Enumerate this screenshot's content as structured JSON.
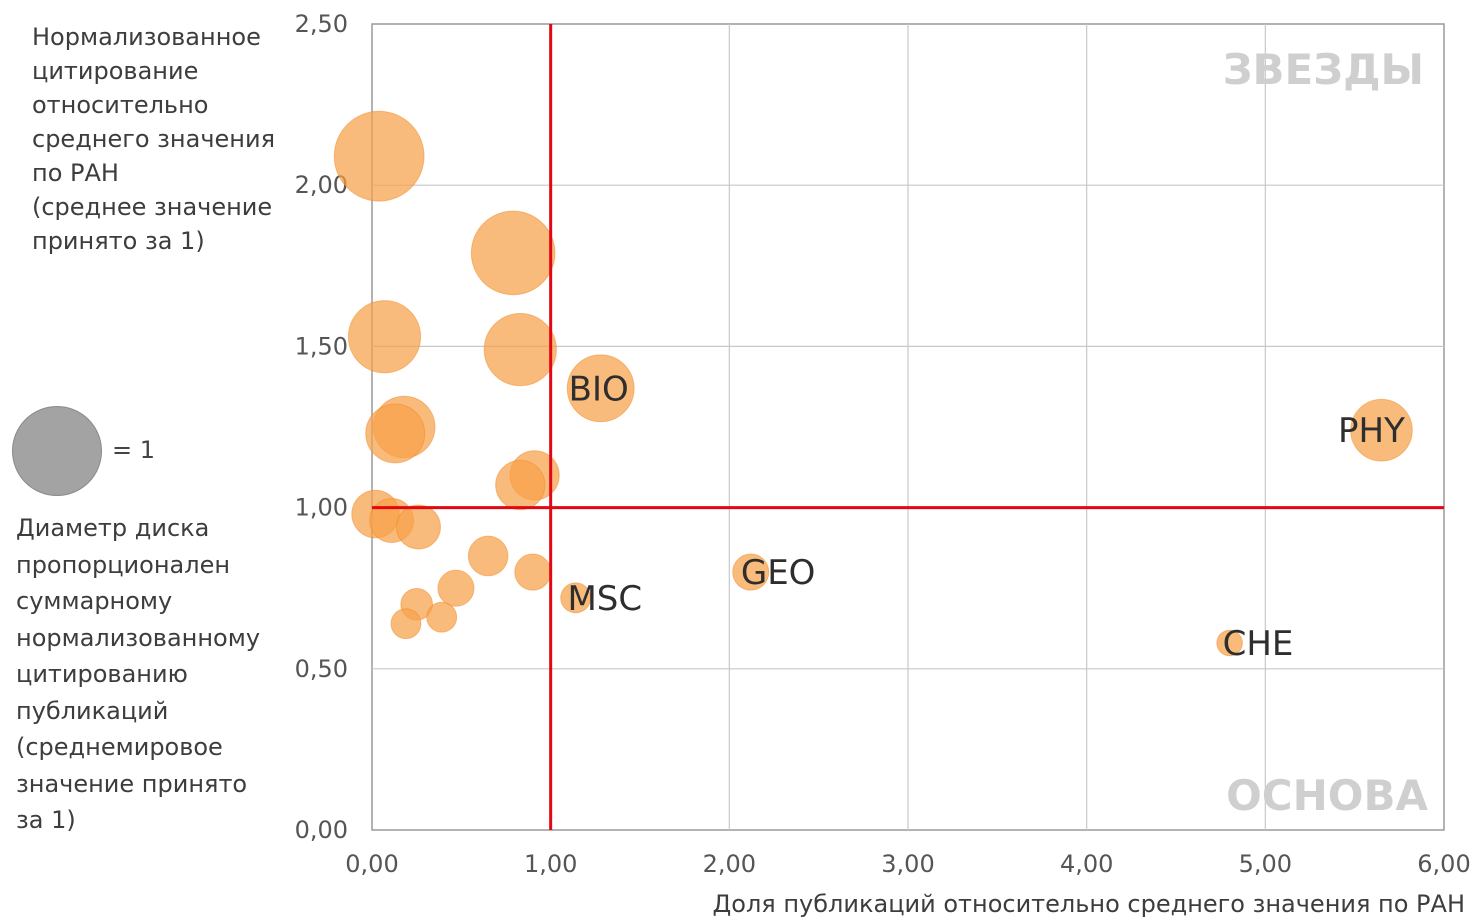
{
  "chart_data": {
    "type": "scatter",
    "variant": "bubble",
    "title": "",
    "ylabel": "Нормализованное\nцитирование\nотносительно\nсреднего значения\nпо РАН\n(среднее значение\nпринято за 1)",
    "xlabel": "Доля публикаций относительно среднего значения по РАН",
    "xlim": [
      0,
      6
    ],
    "ylim": [
      0,
      2.5
    ],
    "x_ticks": [
      "0,00",
      "1,00",
      "2,00",
      "3,00",
      "4,00",
      "5,00",
      "6,00"
    ],
    "y_ticks": [
      "0,00",
      "0,50",
      "1,00",
      "1,50",
      "2,00",
      "2,50"
    ],
    "grid": true,
    "reference_lines": {
      "x": 1.0,
      "y": 1.0,
      "color": "#e30613"
    },
    "quadrant_labels": {
      "top_right": "ЗВЕЗДЫ",
      "bottom_right": "ОСНОВА"
    },
    "size_legend": {
      "label": "= 1",
      "value": 1,
      "description": "Диаметр диска\nпропорционален\nсуммарному\nнормализованному\nцитированию\nпубликаций\n(среднемировое\nзначение принято\nза 1)"
    },
    "bubble_color": "#f7a148",
    "points": [
      {
        "x": 0.04,
        "y": 2.09,
        "size": 1.02
      },
      {
        "x": 0.79,
        "y": 1.79,
        "size": 0.95
      },
      {
        "x": 0.07,
        "y": 1.53,
        "size": 0.82
      },
      {
        "x": 0.83,
        "y": 1.49,
        "size": 0.82
      },
      {
        "x": 1.28,
        "y": 1.37,
        "size": 0.76,
        "label": "BIO"
      },
      {
        "x": 0.18,
        "y": 1.25,
        "size": 0.7
      },
      {
        "x": 0.13,
        "y": 1.23,
        "size": 0.67
      },
      {
        "x": 5.65,
        "y": 1.24,
        "size": 0.7,
        "label": "PHY"
      },
      {
        "x": 0.91,
        "y": 1.1,
        "size": 0.56
      },
      {
        "x": 0.83,
        "y": 1.07,
        "size": 0.56
      },
      {
        "x": 0.02,
        "y": 0.98,
        "size": 0.54
      },
      {
        "x": 0.11,
        "y": 0.96,
        "size": 0.5
      },
      {
        "x": 0.26,
        "y": 0.94,
        "size": 0.5
      },
      {
        "x": 0.65,
        "y": 0.85,
        "size": 0.45
      },
      {
        "x": 0.9,
        "y": 0.8,
        "size": 0.41
      },
      {
        "x": 2.12,
        "y": 0.8,
        "size": 0.41,
        "label": "GEO"
      },
      {
        "x": 0.47,
        "y": 0.75,
        "size": 0.41
      },
      {
        "x": 1.14,
        "y": 0.72,
        "size": 0.34,
        "label": "MSC"
      },
      {
        "x": 0.25,
        "y": 0.7,
        "size": 0.36
      },
      {
        "x": 0.39,
        "y": 0.66,
        "size": 0.34
      },
      {
        "x": 0.19,
        "y": 0.64,
        "size": 0.34
      },
      {
        "x": 4.8,
        "y": 0.58,
        "size": 0.29,
        "label": "CHE"
      }
    ]
  }
}
